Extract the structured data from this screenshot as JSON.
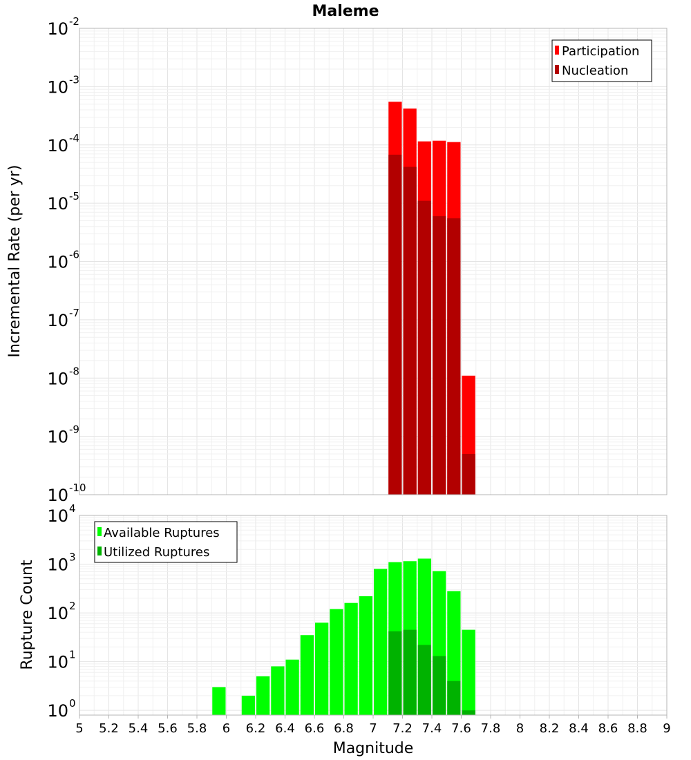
{
  "title": "Maleme",
  "colors": {
    "participation": "#ff0000",
    "nucleation": "#b20000",
    "available": "#00ff00",
    "utilized": "#00b200"
  },
  "chart_data": [
    {
      "type": "bar",
      "title": "Maleme",
      "xlabel": "Magnitude",
      "ylabel": "Incremental Rate (per yr)",
      "yscale": "log",
      "ylim": [
        1e-10,
        0.01
      ],
      "xlim": [
        5,
        9
      ],
      "grid": true,
      "legend_position": "top-right",
      "yticks": [
        {
          "base": "10",
          "exp": "-2"
        },
        {
          "base": "10",
          "exp": "-3"
        },
        {
          "base": "10",
          "exp": "-4"
        },
        {
          "base": "10",
          "exp": "-5"
        },
        {
          "base": "10",
          "exp": "-6"
        },
        {
          "base": "10",
          "exp": "-7"
        },
        {
          "base": "10",
          "exp": "-8"
        },
        {
          "base": "10",
          "exp": "-9"
        },
        {
          "base": "10",
          "exp": "-10"
        }
      ],
      "x": [
        7.15,
        7.25,
        7.35,
        7.45,
        7.55,
        7.65
      ],
      "series": [
        {
          "name": "Participation",
          "values": [
            0.00055,
            0.00042,
            0.000115,
            0.000118,
            0.000112,
            1.1e-08
          ]
        },
        {
          "name": "Nucleation",
          "values": [
            6.8e-05,
            4.2e-05,
            1.1e-05,
            6e-06,
            5.5e-06,
            5e-10
          ]
        }
      ]
    },
    {
      "type": "bar",
      "xlabel": "Magnitude",
      "ylabel": "Rupture Count",
      "yscale": "log",
      "ylim": [
        0.8,
        10000
      ],
      "xlim": [
        5,
        9
      ],
      "grid": true,
      "legend_position": "top-left",
      "yticks": [
        {
          "base": "10",
          "exp": "4"
        },
        {
          "base": "10",
          "exp": "3"
        },
        {
          "base": "10",
          "exp": "2"
        },
        {
          "base": "10",
          "exp": "1"
        },
        {
          "base": "10",
          "exp": "0"
        }
      ],
      "xticks": [
        "5",
        "5.2",
        "5.4",
        "5.6",
        "5.8",
        "6",
        "6.2",
        "6.4",
        "6.6",
        "6.8",
        "7",
        "7.2",
        "7.4",
        "7.6",
        "7.8",
        "8",
        "8.2",
        "8.4",
        "8.6",
        "8.8",
        "9"
      ],
      "x": [
        5.95,
        6.15,
        6.25,
        6.35,
        6.45,
        6.55,
        6.65,
        6.75,
        6.85,
        6.95,
        7.05,
        7.15,
        7.25,
        7.35,
        7.45,
        7.55,
        7.65
      ],
      "series": [
        {
          "name": "Available Ruptures",
          "values": [
            3,
            2,
            5,
            8,
            11,
            35,
            63,
            120,
            160,
            220,
            800,
            1100,
            1150,
            1300,
            720,
            280,
            45
          ]
        },
        {
          "name": "Utilized Ruptures",
          "values": [
            null,
            null,
            null,
            null,
            null,
            null,
            null,
            null,
            null,
            null,
            null,
            42,
            45,
            22,
            13,
            4,
            1
          ]
        }
      ]
    }
  ]
}
